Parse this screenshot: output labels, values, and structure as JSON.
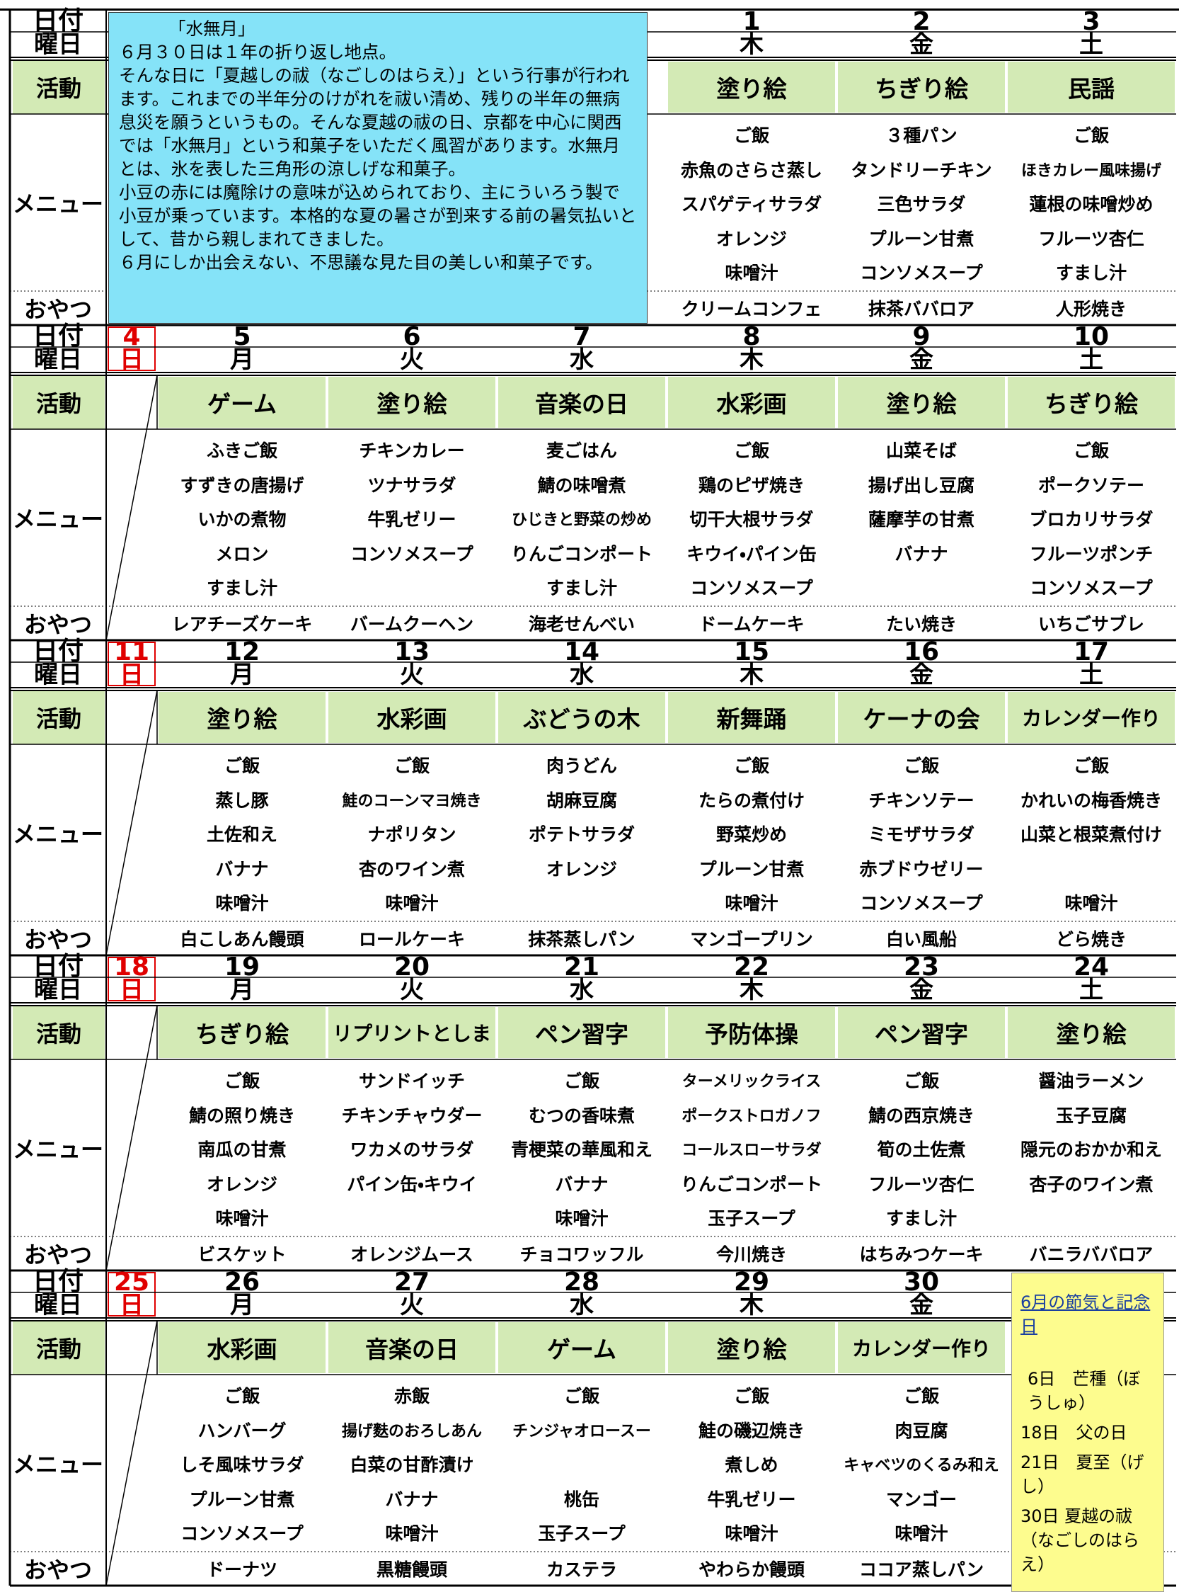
{
  "row_labels": {
    "date": "日付",
    "weekday": "曜日",
    "activity": "活動",
    "menu": "メニュー",
    "snack": "おやつ"
  },
  "note": {
    "title": "「水無月」",
    "paragraphs": [
      "６月３０日は１年の折り返し地点。",
      "そんな日に「夏越しの祓（なごしのはらえ）」という行事が行われます。これまでの半年分のけがれを祓い清め、残りの半年の無病息災を願うというもの。そんな夏越の祓の日、京都を中心に関西では「水無月」という和菓子をいただく風習があります。水無月とは、氷を表した三角形の涼しげな和菓子。",
      "小豆の赤には魔除けの意味が込められており、主にういろう製で小豆が乗っています。本格的な夏の暑さが到来する前の暑気払いとして、昔から親しまれてきました。",
      "６月にしか出会えない、不思議な見た目の美しい和菓子です。"
    ]
  },
  "seasons": {
    "title": "6月の節気と記念日",
    "items": [
      "6日　芒種（ぼうしゅ）",
      "18日　父の日",
      "21日　夏至（げし）",
      "30日 夏越の祓（なごしのはらえ）"
    ]
  },
  "weeks": [
    {
      "dates": [
        null,
        null,
        null,
        null,
        1,
        2,
        3
      ],
      "weekdays": [
        null,
        null,
        null,
        null,
        "木",
        "金",
        "土"
      ],
      "activities": [
        null,
        null,
        null,
        null,
        "塗り絵",
        "ちぎり絵",
        "民謡"
      ],
      "menus": [
        null,
        null,
        null,
        null,
        [
          "ご飯",
          "赤魚のさらさ蒸し",
          "スパゲティサラダ",
          "オレンジ",
          "味噌汁"
        ],
        [
          "３種パン",
          "タンドリーチキン",
          "三色サラダ",
          "プルーン甘煮",
          "コンソメスープ"
        ],
        [
          "ご飯",
          "ほきカレー風味揚げ",
          "蓮根の味噌炒め",
          "フルーツ杏仁",
          "すまし汁"
        ]
      ],
      "snacks": [
        null,
        null,
        null,
        null,
        "クリームコンフェ",
        "抹茶ババロア",
        "人形焼き"
      ]
    },
    {
      "dates": [
        4,
        5,
        6,
        7,
        8,
        9,
        10
      ],
      "weekdays": [
        "日",
        "月",
        "火",
        "水",
        "木",
        "金",
        "土"
      ],
      "activities": [
        null,
        "ゲーム",
        "塗り絵",
        "音楽の日",
        "水彩画",
        "塗り絵",
        "ちぎり絵"
      ],
      "menus": [
        null,
        [
          "ふきご飯",
          "すずきの唐揚げ",
          "いかの煮物",
          "メロン",
          "すまし汁"
        ],
        [
          "チキンカレー",
          "ツナサラダ",
          "牛乳ゼリー",
          "コンソメスープ"
        ],
        [
          "麦ごはん",
          "鯖の味噌煮",
          "ひじきと野菜の炒め",
          "りんごコンポート",
          "すまし汁"
        ],
        [
          "ご飯",
          "鶏のピザ焼き",
          "切干大根サラダ",
          "キウイ・パイン缶",
          "コンソメスープ"
        ],
        [
          "山菜そば",
          "揚げ出し豆腐",
          "薩摩芋の甘煮",
          "バナナ"
        ],
        [
          "ご飯",
          "ポークソテー",
          "ブロカリサラダ",
          "フルーツポンチ",
          "コンソメスープ"
        ]
      ],
      "snacks": [
        null,
        "レアチーズケーキ",
        "バームクーヘン",
        "海老せんべい",
        "ドームケーキ",
        "たい焼き",
        "いちごサブレ"
      ]
    },
    {
      "dates": [
        11,
        12,
        13,
        14,
        15,
        16,
        17
      ],
      "weekdays": [
        "日",
        "月",
        "火",
        "水",
        "木",
        "金",
        "土"
      ],
      "activities": [
        null,
        "塗り絵",
        "水彩画",
        "ぶどうの木",
        "新舞踊",
        "ケーナの会",
        "カレンダー作り"
      ],
      "menus": [
        null,
        [
          "ご飯",
          "蒸し豚",
          "土佐和え",
          "バナナ",
          "味噌汁"
        ],
        [
          "ご飯",
          "鮭のコーンマヨ焼き",
          "ナポリタン",
          "杏のワイン煮",
          "味噌汁"
        ],
        [
          "肉うどん",
          "胡麻豆腐",
          "ポテトサラダ",
          "オレンジ"
        ],
        [
          "ご飯",
          "たらの煮付け",
          "野菜炒め",
          "プルーン甘煮",
          "味噌汁"
        ],
        [
          "ご飯",
          "チキンソテー",
          "ミモザサラダ",
          "赤ブドウゼリー",
          "コンソメスープ"
        ],
        [
          "ご飯",
          "かれいの梅香焼き",
          "山菜と根菜煮付け",
          null,
          "味噌汁"
        ]
      ],
      "snacks": [
        null,
        "白こしあん饅頭",
        "ロールケーキ",
        "抹茶蒸しパン",
        "マンゴープリン",
        "白い風船",
        "どら焼き"
      ]
    },
    {
      "dates": [
        18,
        19,
        20,
        21,
        22,
        23,
        24
      ],
      "weekdays": [
        "日",
        "月",
        "火",
        "水",
        "木",
        "金",
        "土"
      ],
      "activities": [
        null,
        "ちぎり絵",
        "リプリントとしま",
        "ペン習字",
        "予防体操",
        "ペン習字",
        "塗り絵"
      ],
      "menus": [
        null,
        [
          "ご飯",
          "鯖の照り焼き",
          "南瓜の甘煮",
          "オレンジ",
          "味噌汁"
        ],
        [
          "サンドイッチ",
          "チキンチャウダー",
          "ワカメのサラダ",
          "パイン缶・キウイ"
        ],
        [
          "ご飯",
          "むつの香味煮",
          "青梗菜の華風和え",
          "バナナ",
          "味噌汁"
        ],
        [
          "ターメリックライス",
          "ポークストロガノフ",
          "コールスローサラダ",
          "りんごコンポート",
          "玉子スープ"
        ],
        [
          "ご飯",
          "鯖の西京焼き",
          "筍の土佐煮",
          "フルーツ杏仁",
          "すまし汁"
        ],
        [
          "醤油ラーメン",
          "玉子豆腐",
          "隠元のおかか和え",
          "杏子のワイン煮"
        ]
      ],
      "snacks": [
        null,
        "ビスケット",
        "オレンジムース",
        "チョコワッフル",
        "今川焼き",
        "はちみつケーキ",
        "バニラババロア"
      ]
    },
    {
      "dates": [
        25,
        26,
        27,
        28,
        29,
        30,
        null
      ],
      "weekdays": [
        "日",
        "月",
        "火",
        "水",
        "木",
        "金",
        null
      ],
      "activities": [
        null,
        "水彩画",
        "音楽の日",
        "ゲーム",
        "塗り絵",
        "カレンダー作り",
        null
      ],
      "menus": [
        null,
        [
          "ご飯",
          "ハンバーグ",
          "しそ風味サラダ",
          "プルーン甘煮",
          "コンソメスープ"
        ],
        [
          "赤飯",
          "揚げ麩のおろしあん",
          "白菜の甘酢漬け",
          "バナナ",
          "味噌汁"
        ],
        [
          "ご飯",
          "チンジャオロースー",
          null,
          "桃缶",
          "玉子スープ"
        ],
        [
          "ご飯",
          "鮭の磯辺焼き",
          "煮しめ",
          "牛乳ゼリー",
          "味噌汁"
        ],
        [
          "ご飯",
          "肉豆腐",
          "キャベツのくるみ和え",
          "マンゴー",
          "味噌汁"
        ],
        null
      ],
      "snacks": [
        null,
        "ドーナツ",
        "黒糖饅頭",
        "カステラ",
        "やわらか饅頭",
        "ココア蒸しパン",
        null
      ]
    }
  ]
}
